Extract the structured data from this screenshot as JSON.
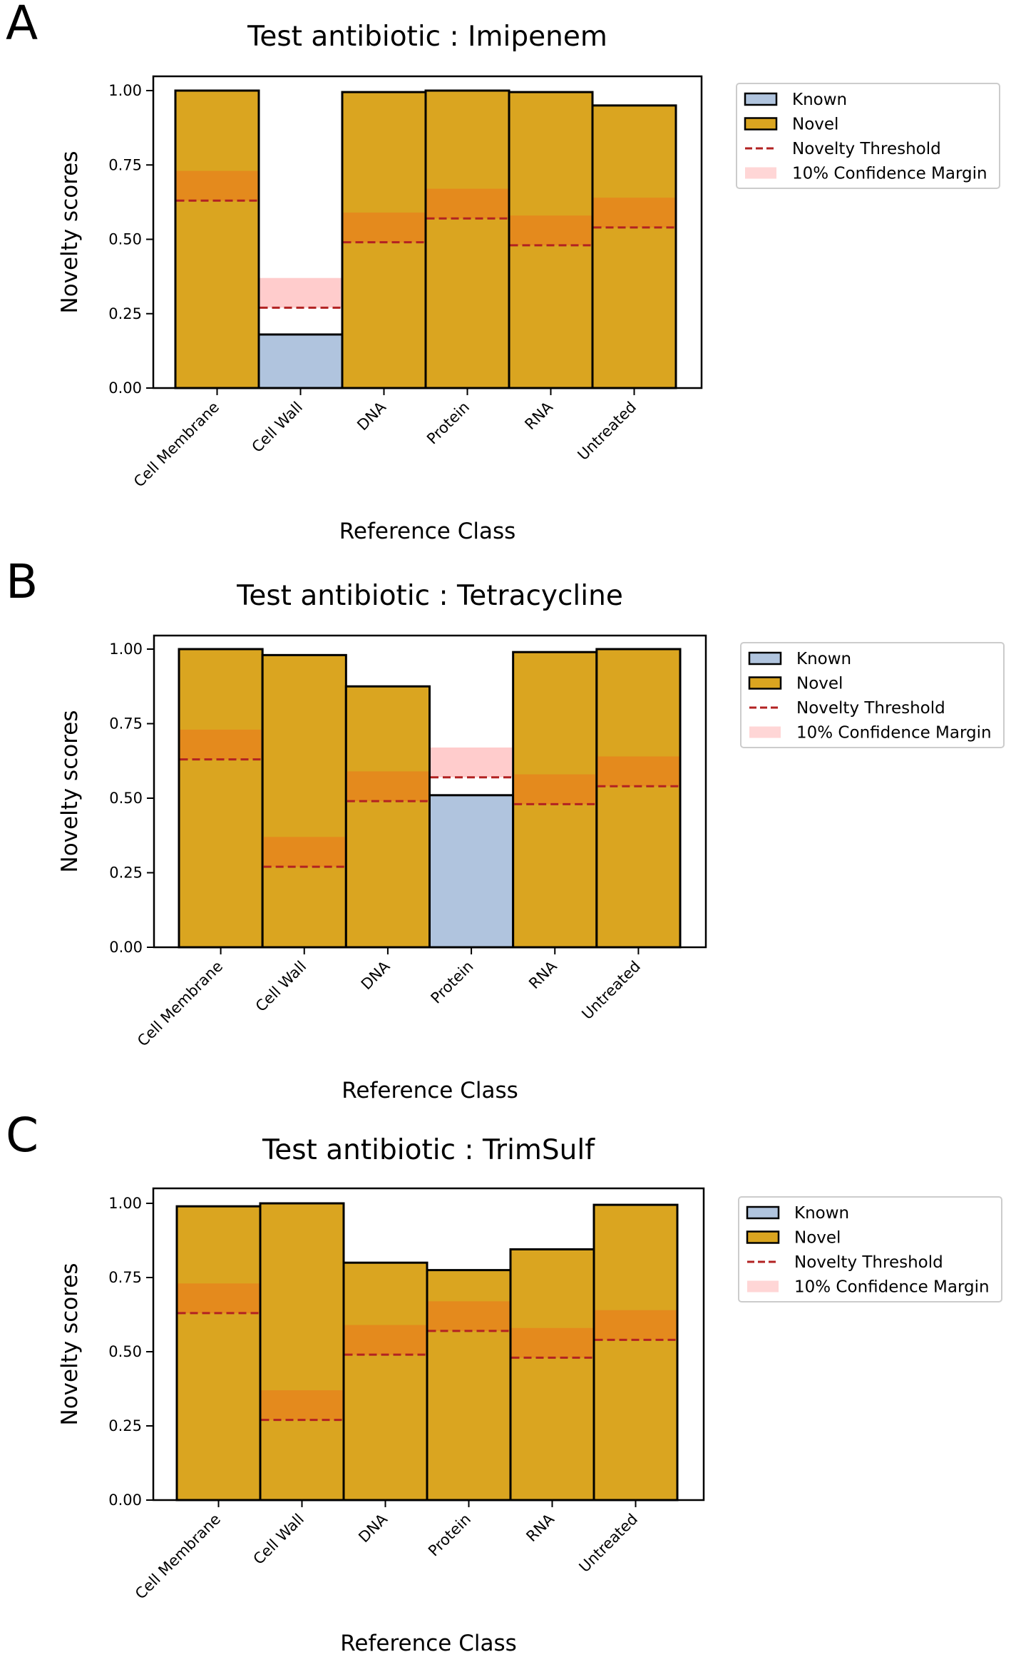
{
  "colors": {
    "known": "#b0c4de",
    "novel": "#daa520",
    "threshold": "#b22222",
    "margin": "#ff9999",
    "edge": "#000000"
  },
  "legend": [
    "Known",
    "Novel",
    "Novelty Threshold",
    "10% Confidence Margin"
  ],
  "chart_data": [
    {
      "panel": "A",
      "type": "bar",
      "title": "Test antibiotic : Imipenem",
      "xlabel": "Reference Class",
      "ylabel": "Novelty scores",
      "ylim": [
        0,
        1.0
      ],
      "yticks": [
        "0.00",
        "0.25",
        "0.50",
        "0.75",
        "1.00"
      ],
      "categories": [
        "Cell Membrane",
        "Cell Wall",
        "DNA",
        "Protein",
        "RNA",
        "Untreated"
      ],
      "values": [
        1.0,
        0.18,
        0.995,
        1.0,
        0.995,
        0.95
      ],
      "status": [
        "Novel",
        "Known",
        "Novel",
        "Novel",
        "Novel",
        "Novel"
      ],
      "thresholds": [
        0.63,
        0.27,
        0.49,
        0.57,
        0.48,
        0.54
      ],
      "margin": 0.1
    },
    {
      "panel": "B",
      "type": "bar",
      "title": "Test antibiotic : Tetracycline",
      "xlabel": "Reference Class",
      "ylabel": "Novelty scores",
      "ylim": [
        0,
        1.0
      ],
      "yticks": [
        "0.00",
        "0.25",
        "0.50",
        "0.75",
        "1.00"
      ],
      "categories": [
        "Cell Membrane",
        "Cell Wall",
        "DNA",
        "Protein",
        "RNA",
        "Untreated"
      ],
      "values": [
        1.0,
        0.98,
        0.875,
        0.51,
        0.99,
        1.0
      ],
      "status": [
        "Novel",
        "Novel",
        "Novel",
        "Known",
        "Novel",
        "Novel"
      ],
      "thresholds": [
        0.63,
        0.27,
        0.49,
        0.57,
        0.48,
        0.54
      ],
      "margin": 0.1
    },
    {
      "panel": "C",
      "type": "bar",
      "title": "Test antibiotic : TrimSulf",
      "xlabel": "Reference Class",
      "ylabel": "Novelty scores",
      "ylim": [
        0,
        1.0
      ],
      "yticks": [
        "0.00",
        "0.25",
        "0.50",
        "0.75",
        "1.00"
      ],
      "categories": [
        "Cell Membrane",
        "Cell Wall",
        "DNA",
        "Protein",
        "RNA",
        "Untreated"
      ],
      "values": [
        0.99,
        1.0,
        0.8,
        0.775,
        0.845,
        0.995
      ],
      "status": [
        "Novel",
        "Novel",
        "Novel",
        "Novel",
        "Novel",
        "Novel"
      ],
      "thresholds": [
        0.63,
        0.27,
        0.49,
        0.57,
        0.48,
        0.54
      ],
      "margin": 0.1
    }
  ]
}
